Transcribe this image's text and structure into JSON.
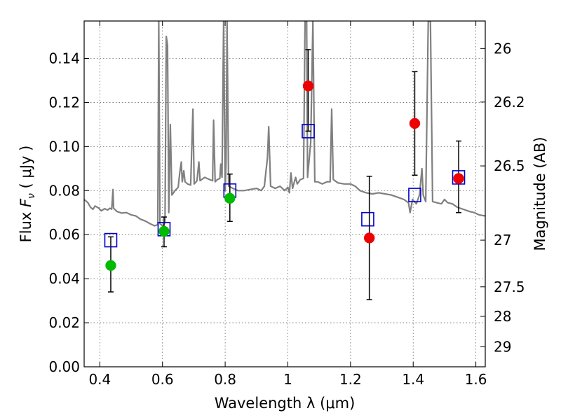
{
  "chart_data": {
    "type": "scatter",
    "xlabel": "Wavelength  λ (μm)",
    "ylabel": "Flux  F_ν  ( μJy )",
    "ylabel_parts": {
      "pre": "Flux  ",
      "var": "F",
      "sub": "ν",
      "post": "  ( μJy )"
    },
    "ylabel_right": "Magnitude (AB)",
    "xlim": [
      0.35,
      1.63
    ],
    "ylim": [
      0.0,
      0.157
    ],
    "grid": true,
    "x_ticks": [
      0.4,
      0.6,
      0.8,
      1.0,
      1.2,
      1.4,
      1.6
    ],
    "x_tick_labels": [
      "0.4",
      "0.6",
      "0.8",
      "1",
      "1.2",
      "1.4",
      "1.6"
    ],
    "y_ticks": [
      0.0,
      0.02,
      0.04,
      0.06,
      0.08,
      0.1,
      0.12,
      0.14
    ],
    "y_tick_labels": [
      "0.00",
      "0.02",
      "0.04",
      "0.06",
      "0.08",
      "0.10",
      "0.12",
      "0.14"
    ],
    "right_ticks": [
      {
        "label": "26",
        "flux": 0.1445
      },
      {
        "label": "26.2",
        "flux": 0.1202
      },
      {
        "label": "26.5",
        "flux": 0.0912
      },
      {
        "label": "27",
        "flux": 0.0575
      },
      {
        "label": "27.5",
        "flux": 0.0363
      },
      {
        "label": "28",
        "flux": 0.0229
      },
      {
        "label": "29",
        "flux": 0.0091
      }
    ],
    "colors": {
      "spectrum": "#808080",
      "model": "#0000cc",
      "green": "#00bb00",
      "red": "#ee0000",
      "error": "#000000"
    },
    "model_points": [
      {
        "x": 0.435,
        "y": 0.0575
      },
      {
        "x": 0.605,
        "y": 0.0625
      },
      {
        "x": 0.815,
        "y": 0.08
      },
      {
        "x": 1.065,
        "y": 0.107
      },
      {
        "x": 1.255,
        "y": 0.067
      },
      {
        "x": 1.405,
        "y": 0.078
      },
      {
        "x": 1.545,
        "y": 0.086
      }
    ],
    "observed_points": [
      {
        "x": 0.435,
        "y": 0.046,
        "err_low": 0.034,
        "err_high": 0.059,
        "color": "green"
      },
      {
        "x": 0.605,
        "y": 0.0615,
        "err_low": 0.0545,
        "err_high": 0.068,
        "color": "green"
      },
      {
        "x": 0.815,
        "y": 0.0765,
        "err_low": 0.066,
        "err_high": 0.0875,
        "color": "green"
      },
      {
        "x": 1.065,
        "y": 0.1275,
        "err_low": 0.107,
        "err_high": 0.144,
        "color": "red"
      },
      {
        "x": 1.26,
        "y": 0.0585,
        "err_low": 0.0305,
        "err_high": 0.0865,
        "color": "red"
      },
      {
        "x": 1.405,
        "y": 0.1105,
        "err_low": 0.087,
        "err_high": 0.134,
        "color": "red"
      },
      {
        "x": 1.545,
        "y": 0.0855,
        "err_low": 0.07,
        "err_high": 0.1025,
        "color": "red"
      }
    ],
    "spectrum": [
      [
        0.35,
        0.076
      ],
      [
        0.362,
        0.0745
      ],
      [
        0.37,
        0.0725
      ],
      [
        0.378,
        0.0715
      ],
      [
        0.385,
        0.073
      ],
      [
        0.395,
        0.0722
      ],
      [
        0.405,
        0.0708
      ],
      [
        0.415,
        0.0718
      ],
      [
        0.425,
        0.0712
      ],
      [
        0.432,
        0.072
      ],
      [
        0.438,
        0.0716
      ],
      [
        0.442,
        0.0805
      ],
      [
        0.444,
        0.072
      ],
      [
        0.455,
        0.0705
      ],
      [
        0.47,
        0.0698
      ],
      [
        0.485,
        0.07
      ],
      [
        0.5,
        0.069
      ],
      [
        0.515,
        0.0685
      ],
      [
        0.53,
        0.067
      ],
      [
        0.545,
        0.0662
      ],
      [
        0.56,
        0.065
      ],
      [
        0.575,
        0.064
      ],
      [
        0.585,
        0.0645
      ],
      [
        0.588,
        0.157
      ],
      [
        0.592,
        0.065
      ],
      [
        0.6,
        0.064
      ],
      [
        0.608,
        0.0655
      ],
      [
        0.612,
        0.15
      ],
      [
        0.616,
        0.146
      ],
      [
        0.62,
        0.07
      ],
      [
        0.625,
        0.11
      ],
      [
        0.63,
        0.078
      ],
      [
        0.64,
        0.08
      ],
      [
        0.65,
        0.0815
      ],
      [
        0.655,
        0.088
      ],
      [
        0.66,
        0.093
      ],
      [
        0.663,
        0.084
      ],
      [
        0.668,
        0.089
      ],
      [
        0.672,
        0.084
      ],
      [
        0.68,
        0.083
      ],
      [
        0.69,
        0.0825
      ],
      [
        0.697,
        0.117
      ],
      [
        0.701,
        0.083
      ],
      [
        0.71,
        0.0845
      ],
      [
        0.716,
        0.093
      ],
      [
        0.72,
        0.0845
      ],
      [
        0.735,
        0.086
      ],
      [
        0.75,
        0.085
      ],
      [
        0.76,
        0.0845
      ],
      [
        0.763,
        0.112
      ],
      [
        0.768,
        0.084
      ],
      [
        0.775,
        0.085
      ],
      [
        0.783,
        0.0855
      ],
      [
        0.786,
        0.092
      ],
      [
        0.79,
        0.086
      ],
      [
        0.795,
        0.157
      ],
      [
        0.8,
        0.08
      ],
      [
        0.803,
        0.093
      ],
      [
        0.806,
        0.157
      ],
      [
        0.811,
        0.082
      ],
      [
        0.825,
        0.081
      ],
      [
        0.84,
        0.08
      ],
      [
        0.86,
        0.08
      ],
      [
        0.88,
        0.0805
      ],
      [
        0.9,
        0.081
      ],
      [
        0.915,
        0.08
      ],
      [
        0.925,
        0.082
      ],
      [
        0.935,
        0.095
      ],
      [
        0.939,
        0.109
      ],
      [
        0.945,
        0.082
      ],
      [
        0.96,
        0.081
      ],
      [
        0.975,
        0.082
      ],
      [
        0.99,
        0.08
      ],
      [
        1.0,
        0.0815
      ],
      [
        1.005,
        0.079
      ],
      [
        1.01,
        0.088
      ],
      [
        1.015,
        0.081
      ],
      [
        1.025,
        0.086
      ],
      [
        1.03,
        0.083
      ],
      [
        1.04,
        0.085
      ],
      [
        1.05,
        0.0855
      ],
      [
        1.055,
        0.157
      ],
      [
        1.06,
        0.157
      ],
      [
        1.063,
        0.086
      ],
      [
        1.073,
        0.102
      ],
      [
        1.08,
        0.157
      ],
      [
        1.086,
        0.084
      ],
      [
        1.095,
        0.084
      ],
      [
        1.11,
        0.083
      ],
      [
        1.125,
        0.084
      ],
      [
        1.135,
        0.084
      ],
      [
        1.14,
        0.117
      ],
      [
        1.145,
        0.085
      ],
      [
        1.16,
        0.0835
      ],
      [
        1.18,
        0.083
      ],
      [
        1.2,
        0.083
      ],
      [
        1.215,
        0.082
      ],
      [
        1.23,
        0.08
      ],
      [
        1.25,
        0.079
      ],
      [
        1.27,
        0.0785
      ],
      [
        1.29,
        0.079
      ],
      [
        1.31,
        0.0785
      ],
      [
        1.33,
        0.078
      ],
      [
        1.35,
        0.077
      ],
      [
        1.37,
        0.076
      ],
      [
        1.385,
        0.0745
      ],
      [
        1.39,
        0.07
      ],
      [
        1.398,
        0.076
      ],
      [
        1.41,
        0.074
      ],
      [
        1.42,
        0.078
      ],
      [
        1.428,
        0.09
      ],
      [
        1.432,
        0.078
      ],
      [
        1.44,
        0.075
      ],
      [
        1.448,
        0.157
      ],
      [
        1.455,
        0.157
      ],
      [
        1.462,
        0.075
      ],
      [
        1.475,
        0.0745
      ],
      [
        1.49,
        0.074
      ],
      [
        1.5,
        0.076
      ],
      [
        1.51,
        0.0745
      ],
      [
        1.525,
        0.074
      ],
      [
        1.54,
        0.0725
      ],
      [
        1.56,
        0.0715
      ],
      [
        1.58,
        0.0705
      ],
      [
        1.595,
        0.07
      ],
      [
        1.61,
        0.069
      ],
      [
        1.63,
        0.0685
      ]
    ]
  }
}
